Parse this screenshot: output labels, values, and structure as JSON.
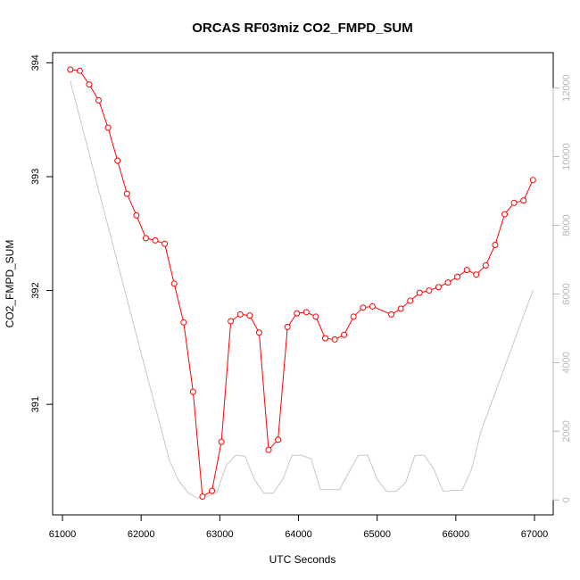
{
  "chart_data": {
    "type": "line",
    "title": "ORCAS RF03miz CO2_FMPD_SUM",
    "xlabel": "UTC Seconds",
    "ylabel": "CO2_FMPD_SUM",
    "xlim": [
      61000,
      67000
    ],
    "ylim": [
      390.1,
      394.05
    ],
    "y2lim": [
      -200,
      12900
    ],
    "x_ticks": [
      61000,
      62000,
      63000,
      64000,
      65000,
      66000,
      67000
    ],
    "y_ticks": [
      391,
      392,
      393,
      394
    ],
    "y2_ticks": [
      0,
      2000,
      4000,
      6000,
      8000,
      10000,
      12000
    ],
    "grid": false,
    "series": [
      {
        "color": "#ff0000",
        "axis": "left",
        "marker": "open-circle",
        "x": [
          61100,
          61220,
          61340,
          61460,
          61580,
          61700,
          61820,
          61940,
          62060,
          62180,
          62300,
          62420,
          62540,
          62660,
          62780,
          62900,
          63020,
          63140,
          63260,
          63380,
          63500,
          63620,
          63740,
          63860,
          63980,
          64100,
          64220,
          64340,
          64460,
          64580,
          64700,
          64820,
          64940,
          65180,
          65300,
          65420,
          65540,
          65660,
          65780,
          65900,
          66020,
          66140,
          66260,
          66380,
          66500,
          66620,
          66740,
          66860,
          66980
        ],
        "values": [
          393.94,
          393.93,
          393.81,
          393.67,
          393.43,
          393.14,
          392.85,
          392.66,
          392.46,
          392.44,
          392.41,
          392.06,
          391.72,
          391.11,
          390.19,
          390.24,
          390.67,
          391.73,
          391.79,
          391.78,
          391.63,
          390.6,
          390.69,
          391.68,
          391.8,
          391.81,
          391.77,
          391.58,
          391.57,
          391.61,
          391.77,
          391.85,
          391.86,
          391.79,
          391.84,
          391.91,
          391.98,
          392.0,
          392.03,
          392.07,
          392.12,
          392.18,
          392.14,
          392.22,
          392.4,
          392.67,
          392.77,
          392.79,
          392.97
        ]
      },
      {
        "color": "#c8c8c8",
        "axis": "right",
        "marker": "none",
        "x": [
          61100,
          61520,
          61940,
          62360,
          62480,
          62600,
          62720,
          62840,
          62960,
          63080,
          63200,
          63320,
          63440,
          63560,
          63680,
          63800,
          63920,
          64040,
          64160,
          64280,
          64400,
          64520,
          64760,
          64880,
          65000,
          65120,
          65240,
          65360,
          65480,
          65600,
          65720,
          65840,
          65960,
          66080,
          66200,
          66320,
          66980
        ],
        "values": [
          12200,
          8500,
          4800,
          1150,
          550,
          200,
          50,
          100,
          200,
          1000,
          1300,
          1280,
          600,
          200,
          200,
          600,
          1300,
          1300,
          1200,
          300,
          300,
          300,
          1300,
          1300,
          600,
          250,
          250,
          500,
          1300,
          1300,
          900,
          250,
          280,
          280,
          900,
          2000,
          6100
        ]
      }
    ]
  }
}
